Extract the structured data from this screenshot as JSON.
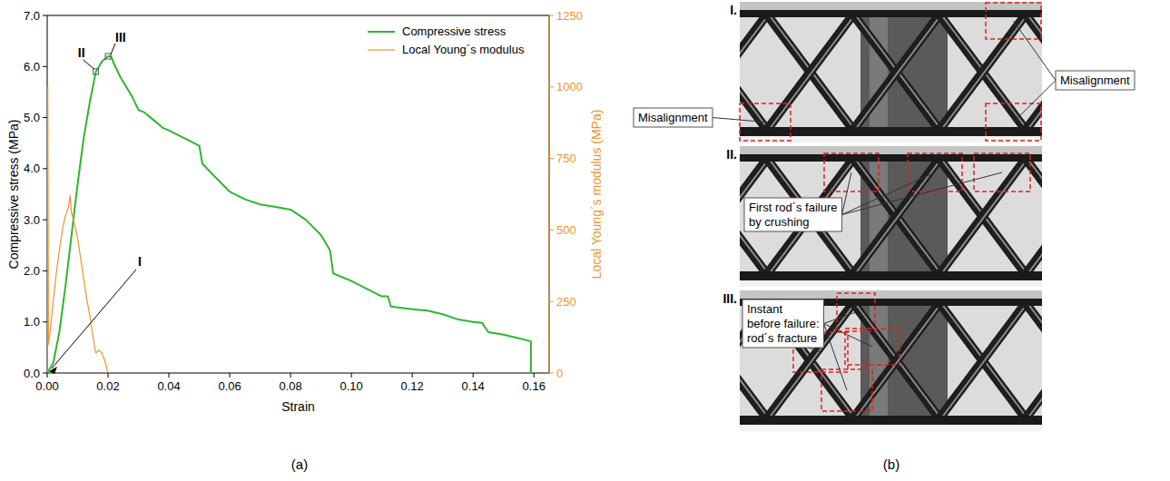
{
  "chart_data": {
    "type": "line",
    "xlabel": "Strain",
    "ylabel": "Compressive stress (MPa)",
    "y2label": "Local Young´s modulus (MPa)",
    "panel_label": "(a)",
    "legend": "upper right",
    "xlim": [
      0,
      0.165
    ],
    "xticks": [
      {
        "value": 0,
        "label": "0.00"
      },
      {
        "value": 0.02,
        "label": "0.02"
      },
      {
        "value": 0.04,
        "label": "0.04"
      },
      {
        "value": 0.06,
        "label": "0.06"
      },
      {
        "value": 0.08,
        "label": "0.08"
      },
      {
        "value": 0.1,
        "label": "0.10"
      },
      {
        "value": 0.12,
        "label": "0.12"
      },
      {
        "value": 0.14,
        "label": "0.14"
      },
      {
        "value": 0.16,
        "label": "0.16"
      }
    ],
    "ylim": [
      0,
      7
    ],
    "yticks": [
      {
        "value": 0,
        "label": "0.0"
      },
      {
        "value": 1,
        "label": "1.0"
      },
      {
        "value": 2,
        "label": "2.0"
      },
      {
        "value": 3,
        "label": "3.0"
      },
      {
        "value": 4,
        "label": "4.0"
      },
      {
        "value": 5,
        "label": "5.0"
      },
      {
        "value": 6,
        "label": "6.0"
      },
      {
        "value": 7,
        "label": "7.0"
      }
    ],
    "y2lim": [
      0,
      1250
    ],
    "y2ticks": [
      0,
      250,
      500,
      750,
      1000,
      1250
    ],
    "series": [
      {
        "name": "Compressive stress",
        "color": "#2fb52f",
        "x": [
          0,
          0.002,
          0.004,
          0.006,
          0.008,
          0.01,
          0.012,
          0.014,
          0.016,
          0.018,
          0.02,
          0.021,
          0.022,
          0.024,
          0.026,
          0.028,
          0.03,
          0.032,
          0.035,
          0.038,
          0.04,
          0.045,
          0.05,
          0.051,
          0.055,
          0.06,
          0.065,
          0.07,
          0.075,
          0.08,
          0.085,
          0.09,
          0.093,
          0.094,
          0.1,
          0.105,
          0.11,
          0.112,
          0.113,
          0.12,
          0.125,
          0.13,
          0.135,
          0.14,
          0.143,
          0.145,
          0.15,
          0.155,
          0.159,
          0.159
        ],
        "values": [
          0,
          0.2,
          0.8,
          1.7,
          2.7,
          3.7,
          4.6,
          5.3,
          5.9,
          6.1,
          6.2,
          6.2,
          6.05,
          5.8,
          5.6,
          5.4,
          5.15,
          5.1,
          4.95,
          4.8,
          4.75,
          4.6,
          4.45,
          4.1,
          3.85,
          3.55,
          3.4,
          3.3,
          3.25,
          3.2,
          3.0,
          2.7,
          2.4,
          1.95,
          1.8,
          1.65,
          1.5,
          1.5,
          1.3,
          1.25,
          1.22,
          1.15,
          1.05,
          1.0,
          0.98,
          0.8,
          0.75,
          0.68,
          0.62,
          0
        ]
      },
      {
        "name": "Local Young´s modulus",
        "color": "#f0932b",
        "axis": "y2",
        "x": [
          0,
          0.0002,
          0.0004,
          0.001,
          0.002,
          0.003,
          0.004,
          0.005,
          0.006,
          0.007,
          0.0075,
          0.008,
          0.009,
          0.01,
          0.011,
          0.012,
          0.013,
          0.014,
          0.015,
          0.016,
          0.017,
          0.018,
          0.019,
          0.02
        ],
        "values": [
          0,
          1000,
          100,
          150,
          250,
          350,
          430,
          500,
          550,
          580,
          620,
          560,
          520,
          470,
          400,
          330,
          260,
          200,
          130,
          70,
          80,
          70,
          40,
          0
        ]
      }
    ],
    "annotations": [
      {
        "text": "I",
        "x": 0,
        "y": 0
      },
      {
        "text": "II",
        "x": 0.016,
        "y": 5.9
      },
      {
        "text": "III",
        "x": 0.02,
        "y": 6.2
      }
    ]
  },
  "figure_b": {
    "panel_label": "(b)",
    "frames": [
      {
        "label": "I.",
        "callouts": [
          {
            "lines": [
              "Misalignment"
            ]
          },
          {
            "lines": [
              "Misalignment"
            ]
          }
        ]
      },
      {
        "label": "II.",
        "callouts": [
          {
            "lines": [
              "First rod´s failure",
              "by crushing"
            ]
          }
        ]
      },
      {
        "label": "III.",
        "callouts": [
          {
            "lines": [
              "Instant",
              "before failure:",
              "rod´s fracture"
            ]
          }
        ]
      }
    ]
  }
}
